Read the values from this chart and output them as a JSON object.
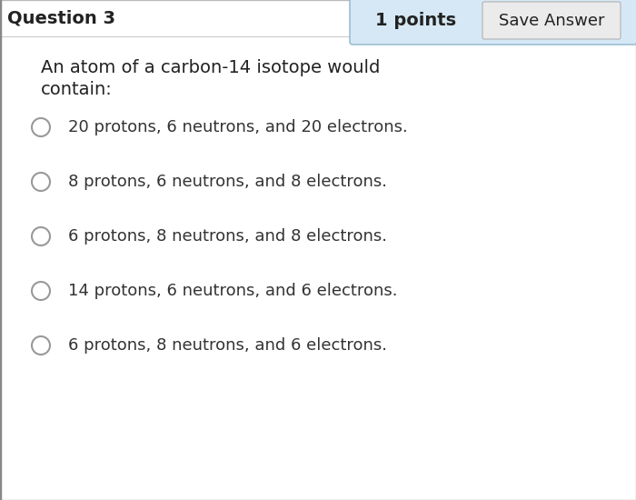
{
  "question_label": "Question 3",
  "points_label": "1 points",
  "save_button": "Save Answer",
  "question_text_line1": "An atom of a carbon-14 isotope would",
  "question_text_line2": "contain:",
  "options": [
    "20 protons, 6 neutrons, and 20 electrons.",
    "8 protons, 6 neutrons, and 8 electrons.",
    "6 protons, 8 neutrons, and 8 electrons.",
    "14 protons, 6 neutrons, and 6 electrons.",
    "6 protons, 8 neutrons, and 6 electrons."
  ],
  "bg_color": "#e8e8e8",
  "main_bg": "#ffffff",
  "points_bg": "#d6e8f5",
  "save_btn_bg": "#ebebeb",
  "outer_border_color": "#bbbbbb",
  "inner_border_color": "#cccccc",
  "points_border_color": "#9bbfd4",
  "text_color": "#222222",
  "option_text_color": "#333333",
  "radio_edge_color": "#999999",
  "radio_fill_color": "#ffffff",
  "header_font_size": 14,
  "question_font_size": 14,
  "option_font_size": 13
}
